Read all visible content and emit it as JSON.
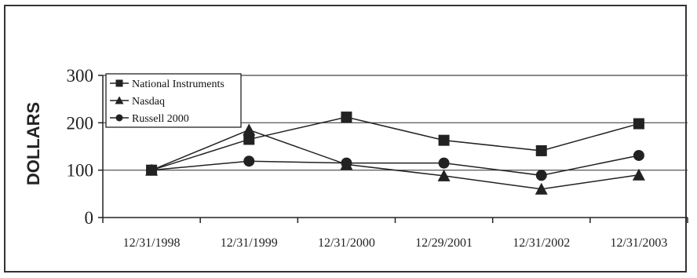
{
  "chart_data": {
    "type": "line",
    "title": "",
    "xlabel": "",
    "ylabel": "DOLLARS",
    "categories": [
      "12/31/1998",
      "12/31/1999",
      "12/31/2000",
      "12/29/2001",
      "12/31/2002",
      "12/31/2003"
    ],
    "yticks": [
      0,
      100,
      200,
      300
    ],
    "ylim": [
      0,
      300
    ],
    "grid": "horizontal",
    "legend_position": "top-left",
    "series": [
      {
        "name": "National Instruments",
        "marker": "square",
        "values": [
          100,
          165,
          212,
          163,
          141,
          198
        ]
      },
      {
        "name": "Nasdaq",
        "marker": "triangle",
        "values": [
          100,
          185,
          112,
          88,
          60,
          90
        ]
      },
      {
        "name": "Russell 2000",
        "marker": "circle",
        "values": [
          100,
          119,
          115,
          115,
          89,
          131
        ]
      }
    ],
    "colors": {
      "line": "#222222",
      "grid": "#444444"
    }
  }
}
